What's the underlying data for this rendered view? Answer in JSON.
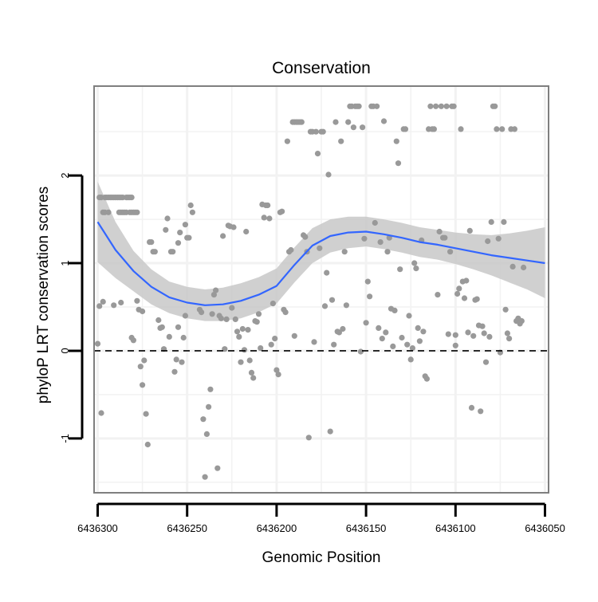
{
  "chart_data": {
    "type": "scatter",
    "title": "Conservation",
    "xlabel": "Genomic Position",
    "ylabel": "phyloP LRT conservation scores",
    "x_reversed": true,
    "xlim": [
      6436302,
      6436048
    ],
    "ylim": [
      -1.62,
      3.02
    ],
    "xticks": [
      {
        "value": 6436300,
        "label": "6436300"
      },
      {
        "value": 6436250,
        "label": "6436250"
      },
      {
        "value": 6436200,
        "label": "6436200"
      },
      {
        "value": 6436150,
        "label": "6436150"
      },
      {
        "value": 6436100,
        "label": "6436100"
      },
      {
        "value": 6436050,
        "label": "6436050"
      }
    ],
    "yticks": [
      {
        "value": -1,
        "label": "-1"
      },
      {
        "value": 0,
        "label": "0"
      },
      {
        "value": 1,
        "label": "1"
      },
      {
        "value": 2,
        "label": "2"
      }
    ],
    "reference_line": {
      "y": 0,
      "style": "dashed"
    },
    "colors": {
      "points": "#999999",
      "smooth_line": "#3366ff",
      "confidence_band": "#c8c8c8",
      "panel_border": "#7f7f7f",
      "grid": "#f2f2f2"
    },
    "smooth": [
      {
        "x": 6436300,
        "y": 1.47
      },
      {
        "x": 6436290,
        "y": 1.15
      },
      {
        "x": 6436280,
        "y": 0.91
      },
      {
        "x": 6436270,
        "y": 0.73
      },
      {
        "x": 6436260,
        "y": 0.61
      },
      {
        "x": 6436250,
        "y": 0.55
      },
      {
        "x": 6436240,
        "y": 0.52
      },
      {
        "x": 6436230,
        "y": 0.53
      },
      {
        "x": 6436220,
        "y": 0.57
      },
      {
        "x": 6436210,
        "y": 0.64
      },
      {
        "x": 6436200,
        "y": 0.74
      },
      {
        "x": 6436190,
        "y": 0.98
      },
      {
        "x": 6436180,
        "y": 1.2
      },
      {
        "x": 6436170,
        "y": 1.31
      },
      {
        "x": 6436160,
        "y": 1.35
      },
      {
        "x": 6436150,
        "y": 1.36
      },
      {
        "x": 6436140,
        "y": 1.33
      },
      {
        "x": 6436130,
        "y": 1.29
      },
      {
        "x": 6436120,
        "y": 1.24
      },
      {
        "x": 6436110,
        "y": 1.21
      },
      {
        "x": 6436100,
        "y": 1.17
      },
      {
        "x": 6436090,
        "y": 1.13
      },
      {
        "x": 6436080,
        "y": 1.09
      },
      {
        "x": 6436070,
        "y": 1.06
      },
      {
        "x": 6436060,
        "y": 1.03
      },
      {
        "x": 6436050,
        "y": 1.0
      }
    ],
    "confidence_band": [
      {
        "x": 6436300,
        "lower": 1.01,
        "upper": 1.93
      },
      {
        "x": 6436290,
        "lower": 0.83,
        "upper": 1.47
      },
      {
        "x": 6436280,
        "lower": 0.68,
        "upper": 1.14
      },
      {
        "x": 6436270,
        "lower": 0.53,
        "upper": 0.93
      },
      {
        "x": 6436260,
        "lower": 0.43,
        "upper": 0.79
      },
      {
        "x": 6436250,
        "lower": 0.37,
        "upper": 0.73
      },
      {
        "x": 6436240,
        "lower": 0.34,
        "upper": 0.7
      },
      {
        "x": 6436230,
        "lower": 0.34,
        "upper": 0.72
      },
      {
        "x": 6436220,
        "lower": 0.37,
        "upper": 0.77
      },
      {
        "x": 6436210,
        "lower": 0.44,
        "upper": 0.84
      },
      {
        "x": 6436200,
        "lower": 0.54,
        "upper": 0.94
      },
      {
        "x": 6436190,
        "lower": 0.78,
        "upper": 1.18
      },
      {
        "x": 6436180,
        "lower": 1.0,
        "upper": 1.4
      },
      {
        "x": 6436170,
        "lower": 1.12,
        "upper": 1.5
      },
      {
        "x": 6436160,
        "lower": 1.17,
        "upper": 1.53
      },
      {
        "x": 6436150,
        "lower": 1.19,
        "upper": 1.53
      },
      {
        "x": 6436140,
        "lower": 1.16,
        "upper": 1.5
      },
      {
        "x": 6436130,
        "lower": 1.12,
        "upper": 1.46
      },
      {
        "x": 6436120,
        "lower": 1.07,
        "upper": 1.41
      },
      {
        "x": 6436110,
        "lower": 1.04,
        "upper": 1.38
      },
      {
        "x": 6436100,
        "lower": 0.99,
        "upper": 1.35
      },
      {
        "x": 6436090,
        "lower": 0.93,
        "upper": 1.33
      },
      {
        "x": 6436080,
        "lower": 0.86,
        "upper": 1.32
      },
      {
        "x": 6436070,
        "lower": 0.78,
        "upper": 1.34
      },
      {
        "x": 6436060,
        "lower": 0.7,
        "upper": 1.37
      },
      {
        "x": 6436050,
        "lower": 0.6,
        "upper": 1.41
      }
    ],
    "points": [
      [
        6436300,
        0.08
      ],
      [
        6436299,
        0.51
      ],
      [
        6436298,
        -0.71
      ],
      [
        6436297,
        0.56
      ],
      [
        6436297,
        1.58
      ],
      [
        6436296,
        1.58
      ],
      [
        6436299,
        1.75
      ],
      [
        6436298,
        1.75
      ],
      [
        6436296,
        1.75
      ],
      [
        6436295,
        1.75
      ],
      [
        6436294,
        1.75
      ],
      [
        6436293,
        1.75
      ],
      [
        6436292,
        1.75
      ],
      [
        6436291,
        1.75
      ],
      [
        6436290,
        1.75
      ],
      [
        6436289,
        1.75
      ],
      [
        6436288,
        1.75
      ],
      [
        6436287,
        1.75
      ],
      [
        6436286,
        1.75
      ],
      [
        6436284,
        1.75
      ],
      [
        6436283,
        1.75
      ],
      [
        6436282,
        1.75
      ],
      [
        6436281,
        1.75
      ],
      [
        6436294,
        1.58
      ],
      [
        6436288,
        1.58
      ],
      [
        6436287,
        1.58
      ],
      [
        6436286,
        1.58
      ],
      [
        6436285,
        1.58
      ],
      [
        6436284,
        1.58
      ],
      [
        6436282,
        1.58
      ],
      [
        6436281,
        1.58
      ],
      [
        6436280,
        1.58
      ],
      [
        6436279,
        1.58
      ],
      [
        6436278,
        1.58
      ],
      [
        6436291,
        0.52
      ],
      [
        6436287,
        0.55
      ],
      [
        6436281,
        0.15
      ],
      [
        6436280,
        0.12
      ],
      [
        6436278,
        0.57
      ],
      [
        6436277,
        0.47
      ],
      [
        6436276,
        -0.18
      ],
      [
        6436275,
        0.45
      ],
      [
        6436275,
        -0.39
      ],
      [
        6436274,
        -0.11
      ],
      [
        6436273,
        -0.72
      ],
      [
        6436272,
        -1.07
      ],
      [
        6436271,
        1.24
      ],
      [
        6436270,
        1.24
      ],
      [
        6436269,
        1.13
      ],
      [
        6436268,
        1.13
      ],
      [
        6436266,
        0.35
      ],
      [
        6436265,
        0.26
      ],
      [
        6436264,
        0.27
      ],
      [
        6436263,
        0.02
      ],
      [
        6436262,
        1.38
      ],
      [
        6436261,
        1.51
      ],
      [
        6436259,
        1.13
      ],
      [
        6436258,
        1.13
      ],
      [
        6436260,
        0.16
      ],
      [
        6436257,
        -0.24
      ],
      [
        6436256,
        -0.1
      ],
      [
        6436255,
        0.27
      ],
      [
        6436255,
        1.23
      ],
      [
        6436254,
        1.35
      ],
      [
        6436253,
        -0.13
      ],
      [
        6436252,
        0.15
      ],
      [
        6436251,
        0.4
      ],
      [
        6436251,
        1.44
      ],
      [
        6436250,
        1.29
      ],
      [
        6436249,
        1.29
      ],
      [
        6436248,
        1.66
      ],
      [
        6436247,
        1.58
      ],
      [
        6436243,
        0.47
      ],
      [
        6436242,
        0.44
      ],
      [
        6436241,
        -0.78
      ],
      [
        6436240,
        -1.44
      ],
      [
        6436239,
        -0.95
      ],
      [
        6436238,
        -0.64
      ],
      [
        6436237,
        -0.44
      ],
      [
        6436236,
        0.42
      ],
      [
        6436235,
        0.64
      ],
      [
        6436234,
        0.69
      ],
      [
        6436233,
        -1.34
      ],
      [
        6436232,
        0.4
      ],
      [
        6436231,
        0.37
      ],
      [
        6436230,
        1.31
      ],
      [
        6436229,
        0.02
      ],
      [
        6436228,
        0.36
      ],
      [
        6436227,
        1.43
      ],
      [
        6436226,
        1.42
      ],
      [
        6436225,
        0.49
      ],
      [
        6436224,
        1.41
      ],
      [
        6436223,
        0.36
      ],
      [
        6436222,
        0.22
      ],
      [
        6436221,
        0.16
      ],
      [
        6436220,
        -0.13
      ],
      [
        6436219,
        0.25
      ],
      [
        6436218,
        0.01
      ],
      [
        6436217,
        1.36
      ],
      [
        6436216,
        0.24
      ],
      [
        6436215,
        -0.11
      ],
      [
        6436214,
        -0.25
      ],
      [
        6436213,
        -0.31
      ],
      [
        6436212,
        0.34
      ],
      [
        6436211,
        0.33
      ],
      [
        6436210,
        0.42
      ],
      [
        6436209,
        0.03
      ],
      [
        6436208,
        1.67
      ],
      [
        6436207,
        1.52
      ],
      [
        6436206,
        1.66
      ],
      [
        6436205,
        1.66
      ],
      [
        6436204,
        1.51
      ],
      [
        6436203,
        0.07
      ],
      [
        6436202,
        0.54
      ],
      [
        6436201,
        0.14
      ],
      [
        6436200,
        -0.22
      ],
      [
        6436199,
        -0.27
      ],
      [
        6436198,
        1.58
      ],
      [
        6436197,
        1.59
      ],
      [
        6436196,
        0.47
      ],
      [
        6436195,
        0.44
      ],
      [
        6436194,
        2.39
      ],
      [
        6436193,
        1.13
      ],
      [
        6436192,
        1.15
      ],
      [
        6436190,
        0.17
      ],
      [
        6436191,
        2.61
      ],
      [
        6436190,
        2.61
      ],
      [
        6436189,
        2.61
      ],
      [
        6436188,
        2.61
      ],
      [
        6436187,
        2.61
      ],
      [
        6436186,
        2.61
      ],
      [
        6436185,
        1.32
      ],
      [
        6436184,
        1.3
      ],
      [
        6436183,
        1.13
      ],
      [
        6436182,
        -0.99
      ],
      [
        6436181,
        2.5
      ],
      [
        6436180,
        2.5
      ],
      [
        6436179,
        0.1
      ],
      [
        6436178,
        2.5
      ],
      [
        6436177,
        2.25
      ],
      [
        6436176,
        1.17
      ],
      [
        6436175,
        2.5
      ],
      [
        6436174,
        2.5
      ],
      [
        6436173,
        0.51
      ],
      [
        6436172,
        0.89
      ],
      [
        6436171,
        2.01
      ],
      [
        6436170,
        -0.92
      ],
      [
        6436169,
        0.58
      ],
      [
        6436168,
        0.07
      ],
      [
        6436167,
        2.61
      ],
      [
        6436166,
        0.22
      ],
      [
        6436165,
        0.21
      ],
      [
        6436164,
        2.39
      ],
      [
        6436163,
        0.25
      ],
      [
        6436162,
        1.13
      ],
      [
        6436161,
        0.52
      ],
      [
        6436160,
        2.61
      ],
      [
        6436159,
        2.79
      ],
      [
        6436158,
        2.79
      ],
      [
        6436157,
        2.55
      ],
      [
        6436156,
        2.79
      ],
      [
        6436155,
        2.79
      ],
      [
        6436154,
        2.79
      ],
      [
        6436153,
        -0.01
      ],
      [
        6436152,
        2.55
      ],
      [
        6436151,
        1.28
      ],
      [
        6436150,
        0.32
      ],
      [
        6436149,
        0.79
      ],
      [
        6436148,
        0.62
      ],
      [
        6436147,
        2.79
      ],
      [
        6436146,
        2.79
      ],
      [
        6436145,
        1.46
      ],
      [
        6436144,
        2.79
      ],
      [
        6436143,
        0.26
      ],
      [
        6436142,
        1.24
      ],
      [
        6436141,
        0.14
      ],
      [
        6436140,
        2.62
      ],
      [
        6436139,
        0.21
      ],
      [
        6436138,
        1.13
      ],
      [
        6436137,
        1.29
      ],
      [
        6436136,
        0.48
      ],
      [
        6436135,
        0.05
      ],
      [
        6436134,
        0.46
      ],
      [
        6436133,
        2.39
      ],
      [
        6436132,
        2.14
      ],
      [
        6436131,
        0.93
      ],
      [
        6436130,
        0.15
      ],
      [
        6436129,
        2.53
      ],
      [
        6436128,
        2.53
      ],
      [
        6436127,
        0.07
      ],
      [
        6436126,
        0.4
      ],
      [
        6436125,
        -0.1
      ],
      [
        6436124,
        0.03
      ],
      [
        6436123,
        1.0
      ],
      [
        6436122,
        0.94
      ],
      [
        6436121,
        0.26
      ],
      [
        6436120,
        0.11
      ],
      [
        6436119,
        1.26
      ],
      [
        6436118,
        0.22
      ],
      [
        6436117,
        -0.29
      ],
      [
        6436116,
        -0.32
      ],
      [
        6436115,
        2.53
      ],
      [
        6436114,
        2.79
      ],
      [
        6436113,
        2.53
      ],
      [
        6436112,
        2.53
      ],
      [
        6436111,
        2.79
      ],
      [
        6436110,
        0.64
      ],
      [
        6436109,
        1.36
      ],
      [
        6436108,
        2.79
      ],
      [
        6436107,
        1.29
      ],
      [
        6436106,
        1.29
      ],
      [
        6436105,
        2.79
      ],
      [
        6436104,
        0.19
      ],
      [
        6436103,
        1.13
      ],
      [
        6436102,
        2.79
      ],
      [
        6436101,
        2.79
      ],
      [
        6436100,
        0.06
      ],
      [
        6436100,
        0.18
      ],
      [
        6436099,
        0.65
      ],
      [
        6436098,
        0.71
      ],
      [
        6436097,
        2.53
      ],
      [
        6436096,
        0.79
      ],
      [
        6436095,
        0.6
      ],
      [
        6436094,
        0.8
      ],
      [
        6436093,
        0.21
      ],
      [
        6436092,
        1.37
      ],
      [
        6436091,
        -0.65
      ],
      [
        6436090,
        0.17
      ],
      [
        6436089,
        0.58
      ],
      [
        6436088,
        0.59
      ],
      [
        6436087,
        0.29
      ],
      [
        6436086,
        -0.69
      ],
      [
        6436085,
        0.28
      ],
      [
        6436084,
        0.2
      ],
      [
        6436083,
        -0.13
      ],
      [
        6436082,
        1.25
      ],
      [
        6436081,
        0.16
      ],
      [
        6436080,
        1.47
      ],
      [
        6436079,
        2.79
      ],
      [
        6436078,
        2.79
      ],
      [
        6436077,
        2.53
      ],
      [
        6436076,
        1.28
      ],
      [
        6436075,
        -0.02
      ],
      [
        6436074,
        2.53
      ],
      [
        6436073,
        1.47
      ],
      [
        6436072,
        0.47
      ],
      [
        6436071,
        0.2
      ],
      [
        6436070,
        0.14
      ],
      [
        6436069,
        2.53
      ],
      [
        6436068,
        0.96
      ],
      [
        6436067,
        2.53
      ],
      [
        6436066,
        0.34
      ],
      [
        6436065,
        0.37
      ],
      [
        6436064,
        0.31
      ],
      [
        6436063,
        0.34
      ],
      [
        6436062,
        0.95
      ]
    ]
  }
}
